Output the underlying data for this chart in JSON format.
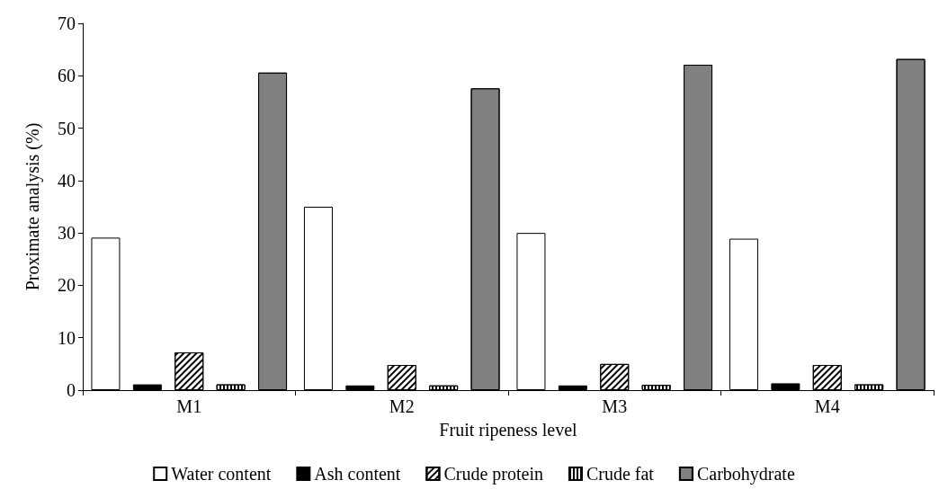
{
  "chart_data": {
    "type": "bar",
    "xlabel": "Fruit ripeness level",
    "ylabel": "Proximate analysis (%)",
    "categories": [
      "M1",
      "M2",
      "M3",
      "M4"
    ],
    "series": [
      {
        "name": "Water content",
        "color": "#ffffff",
        "values": [
          29.1,
          35,
          30,
          28.9
        ]
      },
      {
        "name": "Ash content",
        "color": "#000000",
        "values": [
          1.1,
          0.9,
          0.9,
          1.3
        ]
      },
      {
        "name": "Crude protein",
        "color": "#ffffff",
        "values": [
          7.2,
          4.8,
          5,
          4.8
        ]
      },
      {
        "name": "Crude fat",
        "color": "#ffffff",
        "values": [
          1.1,
          0.9,
          1,
          1.1
        ]
      },
      {
        "name": "Carbohydrate",
        "color": "#808080",
        "values": [
          60.6,
          57.6,
          62.1,
          63.2
        ]
      }
    ],
    "ylim": [
      0,
      70
    ],
    "yticks": [
      0,
      10,
      20,
      30,
      40,
      50,
      60,
      70
    ],
    "grid": false,
    "legend": "bottom"
  }
}
